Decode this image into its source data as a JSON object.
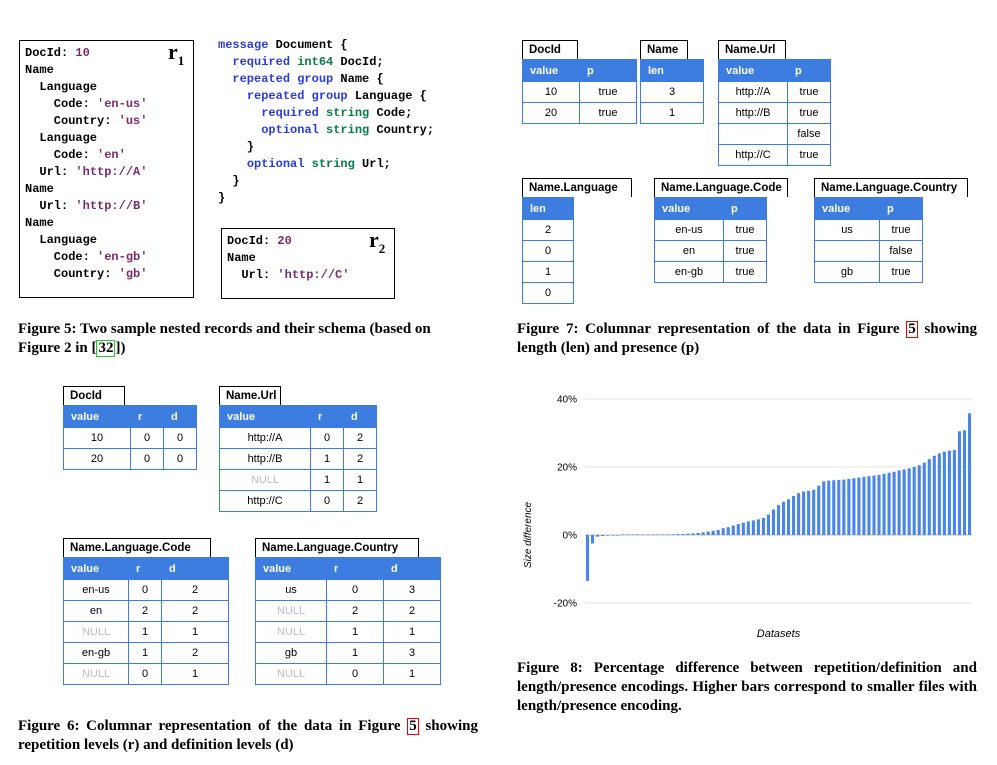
{
  "fig5": {
    "r1_record": [
      [
        "DocId: ",
        "10"
      ],
      [
        "Name",
        ""
      ],
      [
        "  Language",
        ""
      ],
      [
        "    Code: ",
        "'en-us'"
      ],
      [
        "    Country: ",
        "'us'"
      ],
      [
        "  Language",
        ""
      ],
      [
        "    Code: ",
        "'en'"
      ],
      [
        "  Url: ",
        "'http://A'"
      ],
      [
        "Name",
        ""
      ],
      [
        "  Url: ",
        "'http://B'"
      ],
      [
        "Name",
        ""
      ],
      [
        "  Language",
        ""
      ],
      [
        "    Code: ",
        "'en-gb'"
      ],
      [
        "    Country: ",
        "'gb'"
      ]
    ],
    "r1_label": "r",
    "r1_sub": "1",
    "r2_record": [
      [
        "DocId: ",
        "20"
      ],
      [
        "Name",
        ""
      ],
      [
        "  Url: ",
        "'http://C'"
      ]
    ],
    "r2_label": "r",
    "r2_sub": "2",
    "schema": [
      [
        [
          "kw",
          "message"
        ],
        [
          "t",
          " Document {"
        ]
      ],
      [
        [
          "t",
          "  "
        ],
        [
          "kw",
          "required"
        ],
        [
          "t",
          " "
        ],
        [
          "ty",
          "int64"
        ],
        [
          "t",
          " DocId;"
        ]
      ],
      [
        [
          "t",
          "  "
        ],
        [
          "kw",
          "repeated group"
        ],
        [
          "t",
          " Name {"
        ]
      ],
      [
        [
          "t",
          "    "
        ],
        [
          "kw",
          "repeated group"
        ],
        [
          "t",
          " Language {"
        ]
      ],
      [
        [
          "t",
          "      "
        ],
        [
          "kw",
          "required"
        ],
        [
          "t",
          " "
        ],
        [
          "ty",
          "string"
        ],
        [
          "t",
          " Code;"
        ]
      ],
      [
        [
          "t",
          "      "
        ],
        [
          "kw",
          "optional"
        ],
        [
          "t",
          " "
        ],
        [
          "ty",
          "string"
        ],
        [
          "t",
          " Country;"
        ]
      ],
      [
        [
          "t",
          "    }"
        ]
      ],
      [
        [
          "t",
          "    "
        ],
        [
          "kw",
          "optional"
        ],
        [
          "t",
          " "
        ],
        [
          "ty",
          "string"
        ],
        [
          "t",
          " Url;"
        ]
      ],
      [
        [
          "t",
          "  }"
        ]
      ],
      [
        [
          "t",
          "}"
        ]
      ]
    ],
    "caption_a": "Figure 5: Two sample nested records and their schema (based on Figure 2 in [",
    "caption_ref": "32",
    "caption_b": "])"
  },
  "fig6": {
    "tables": [
      {
        "title": "DocId",
        "cols": [
          "value",
          "r",
          "d"
        ],
        "rows": [
          [
            "10",
            "0",
            "0"
          ],
          [
            "20",
            "0",
            "0"
          ]
        ]
      },
      {
        "title": "Name.Url",
        "cols": [
          "value",
          "r",
          "d"
        ],
        "rows": [
          [
            "http://A",
            "0",
            "2"
          ],
          [
            "http://B",
            "1",
            "2"
          ],
          [
            "NULL",
            "1",
            "1"
          ],
          [
            "http://C",
            "0",
            "2"
          ]
        ]
      },
      {
        "title": "Name.Language.Code",
        "cols": [
          "value",
          "r",
          "d"
        ],
        "rows": [
          [
            "en-us",
            "0",
            "2"
          ],
          [
            "en",
            "2",
            "2"
          ],
          [
            "NULL",
            "1",
            "1"
          ],
          [
            "en-gb",
            "1",
            "2"
          ],
          [
            "NULL",
            "0",
            "1"
          ]
        ]
      },
      {
        "title": "Name.Language.Country",
        "cols": [
          "value",
          "r",
          "d"
        ],
        "rows": [
          [
            "us",
            "0",
            "3"
          ],
          [
            "NULL",
            "2",
            "2"
          ],
          [
            "NULL",
            "1",
            "1"
          ],
          [
            "gb",
            "1",
            "3"
          ],
          [
            "NULL",
            "0",
            "1"
          ]
        ]
      }
    ],
    "caption_a": "Figure 6: Columnar representation of the data in Figure ",
    "caption_ref": "5",
    "caption_b": " showing repetition levels (r) and definition levels (d)"
  },
  "fig7": {
    "tables": [
      {
        "title": "DocId",
        "cols": [
          "value",
          "p"
        ],
        "rows": [
          [
            "10",
            "true"
          ],
          [
            "20",
            "true"
          ]
        ]
      },
      {
        "title": "Name",
        "cols": [
          "len"
        ],
        "rows": [
          [
            "3"
          ],
          [
            "1"
          ]
        ]
      },
      {
        "title": "Name.Url",
        "cols": [
          "value",
          "p"
        ],
        "rows": [
          [
            "http://A",
            "true"
          ],
          [
            "http://B",
            "true"
          ],
          [
            "",
            "false"
          ],
          [
            "http://C",
            "true"
          ]
        ]
      },
      {
        "title": "Name.Language",
        "cols": [
          "len"
        ],
        "rows": [
          [
            "2"
          ],
          [
            "0"
          ],
          [
            "1"
          ],
          [
            "0"
          ]
        ]
      },
      {
        "title": "Name.Language.Code",
        "cols": [
          "value",
          "p"
        ],
        "rows": [
          [
            "en-us",
            "true"
          ],
          [
            "en",
            "true"
          ],
          [
            "en-gb",
            "true"
          ]
        ]
      },
      {
        "title": "Name.Language.Country",
        "cols": [
          "value",
          "p"
        ],
        "rows": [
          [
            "us",
            "true"
          ],
          [
            "",
            "false"
          ],
          [
            "gb",
            "true"
          ]
        ]
      }
    ],
    "caption_a": "Figure 7:  Columnar representation of the data in Figure ",
    "caption_ref": "5",
    "caption_b": " showing length (len) and presence (p)"
  },
  "fig8": {
    "caption": "Figure 8:  Percentage difference between repetition/definition and length/presence encodings.  Higher bars correspond to smaller files with length/presence encoding."
  },
  "chart_data": {
    "type": "bar",
    "title": "",
    "xlabel": "Datasets",
    "ylabel": "Size difference",
    "ylim": [
      -25,
      42
    ],
    "yticks": [
      "40%",
      "20%",
      "0%",
      "-20%"
    ],
    "ytick_values": [
      40,
      20,
      0,
      -20
    ],
    "grid": true,
    "bar_color": "#4a86e8",
    "values": [
      -13.5,
      -2.5,
      -0.5,
      -0.3,
      -0.2,
      -0.1,
      -0.1,
      0,
      0,
      0,
      0,
      0,
      0,
      0.1,
      0.1,
      0.1,
      0.2,
      0.2,
      0.3,
      0.3,
      0.4,
      0.5,
      0.6,
      0.8,
      1,
      1.2,
      1.5,
      2,
      2.3,
      2.8,
      3.2,
      3.6,
      4,
      4.3,
      4.6,
      5,
      6,
      7.5,
      8.8,
      9.8,
      10.5,
      11.5,
      12.3,
      12.8,
      13,
      13.3,
      14.5,
      15.8,
      16,
      16.1,
      16.2,
      16.3,
      16.5,
      16.7,
      16.9,
      17.1,
      17.3,
      17.5,
      17.7,
      18,
      18.3,
      18.6,
      19,
      19.3,
      19.6,
      20,
      20.5,
      21.3,
      22.3,
      23.3,
      24,
      24.5,
      24.8,
      25,
      30.5,
      30.8,
      35.8
    ]
  }
}
